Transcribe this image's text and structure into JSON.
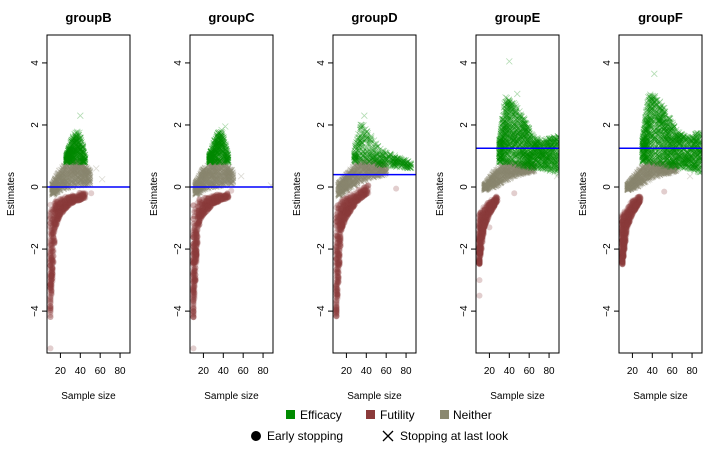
{
  "chart_data": {
    "type": "scatter",
    "xlabel": "Sample size",
    "ylabel": "Estimates",
    "xlim": [
      6.5,
      90
    ],
    "ylim": [
      -5.35,
      4.9
    ],
    "x_ticks": [
      "20",
      "40",
      "60",
      "80"
    ],
    "y_ticks": [
      "-4",
      "-2",
      "0",
      "2",
      "4"
    ],
    "legend": {
      "placement": "bottom",
      "categories": [
        {
          "label": "Efficacy",
          "color": "#008B00"
        },
        {
          "label": "Futility",
          "color": "#8B3A3A"
        },
        {
          "label": "Neither",
          "color": "#8B8970"
        }
      ],
      "markers": [
        {
          "label": "Early stopping",
          "symbol": "circle"
        },
        {
          "label": "Stopping at last look",
          "symbol": "cross"
        }
      ]
    },
    "panels": [
      {
        "title": "groupB",
        "reference_line": 0,
        "clouds": [
          {
            "category": "Futility",
            "marker": "circle",
            "profile": [
              [
                10,
                -4.2,
                -0.45
              ],
              [
                15,
                -1.3,
                -0.4
              ],
              [
                20,
                -0.9,
                -0.35
              ],
              [
                30,
                -0.55,
                -0.25
              ],
              [
                45,
                -0.35,
                -0.15
              ]
            ],
            "outliers": [
              [
                10,
                -5.2
              ],
              [
                45,
                -0.35
              ],
              [
                51,
                -0.2
              ]
            ]
          },
          {
            "category": "Neither",
            "marker": "cross",
            "profile": [
              [
                12,
                -0.25,
                0.1
              ],
              [
                20,
                -0.1,
                0.6
              ],
              [
                30,
                0,
                0.85
              ],
              [
                40,
                0.05,
                0.85
              ],
              [
                50,
                0.1,
                0.5
              ]
            ],
            "outliers": [
              [
                56,
                0.6
              ],
              [
                62,
                0.25
              ]
            ]
          },
          {
            "category": "Efficacy",
            "marker": "cross",
            "profile": [
              [
                26,
                0.8,
                1.0
              ],
              [
                32,
                0.8,
                1.6
              ],
              [
                38,
                0.8,
                1.9
              ],
              [
                45,
                0.8,
                1.0
              ]
            ],
            "outliers": [
              [
                40,
                2.3
              ]
            ]
          }
        ]
      },
      {
        "title": "groupC",
        "reference_line": 0,
        "clouds": [
          {
            "category": "Futility",
            "marker": "circle",
            "profile": [
              [
                10,
                -4.2,
                -0.45
              ],
              [
                15,
                -1.3,
                -0.4
              ],
              [
                20,
                -0.9,
                -0.35
              ],
              [
                30,
                -0.55,
                -0.25
              ],
              [
                45,
                -0.35,
                -0.15
              ]
            ],
            "outliers": [
              [
                10,
                -5.2
              ],
              [
                48,
                -0.12
              ]
            ]
          },
          {
            "category": "Neither",
            "marker": "cross",
            "profile": [
              [
                12,
                -0.25,
                0.1
              ],
              [
                20,
                -0.1,
                0.6
              ],
              [
                30,
                0,
                0.85
              ],
              [
                40,
                0.05,
                0.85
              ],
              [
                50,
                0.1,
                0.5
              ]
            ],
            "outliers": [
              [
                58,
                0.35
              ],
              [
                88,
                0.05
              ]
            ]
          },
          {
            "category": "Efficacy",
            "marker": "cross",
            "profile": [
              [
                26,
                0.8,
                1.0
              ],
              [
                32,
                0.8,
                1.6
              ],
              [
                38,
                0.8,
                1.9
              ],
              [
                45,
                0.8,
                1.0
              ]
            ],
            "outliers": [
              [
                42,
                1.95
              ]
            ]
          }
        ]
      },
      {
        "title": "groupD",
        "reference_line": 0.4,
        "clouds": [
          {
            "category": "Futility",
            "marker": "circle",
            "profile": [
              [
                10,
                -4.2,
                -0.5
              ],
              [
                15,
                -1.4,
                -0.4
              ],
              [
                20,
                -1.0,
                -0.3
              ],
              [
                30,
                -0.5,
                -0.1
              ],
              [
                42,
                -0.2,
                0.1
              ]
            ],
            "outliers": [
              [
                70,
                -0.05
              ]
            ]
          },
          {
            "category": "Neither",
            "marker": "cross",
            "profile": [
              [
                12,
                -0.3,
                0.1
              ],
              [
                20,
                -0.1,
                0.4
              ],
              [
                30,
                0.1,
                0.8
              ],
              [
                45,
                0.3,
                0.85
              ],
              [
                60,
                0.4,
                0.7
              ]
            ],
            "outliers": []
          },
          {
            "category": "Efficacy",
            "marker": "cross",
            "profile": [
              [
                28,
                0.8,
                1.2
              ],
              [
                35,
                0.8,
                2.1
              ],
              [
                42,
                0.8,
                1.8
              ],
              [
                55,
                0.7,
                1.2
              ],
              [
                85,
                0.6,
                0.8
              ]
            ],
            "outliers": [
              [
                38,
                2.3
              ]
            ]
          }
        ]
      },
      {
        "title": "groupE",
        "reference_line": 1.25,
        "clouds": [
          {
            "category": "Futility",
            "marker": "circle",
            "profile": [
              [
                10,
                -2.5,
                -0.8
              ],
              [
                15,
                -1.3,
                -0.6
              ],
              [
                20,
                -0.9,
                -0.4
              ],
              [
                28,
                -0.45,
                -0.25
              ]
            ],
            "outliers": [
              [
                10,
                -3.0
              ],
              [
                10,
                -3.5
              ],
              [
                45,
                -0.2
              ],
              [
                20,
                -1.3
              ]
            ]
          },
          {
            "category": "Neither",
            "marker": "cross",
            "profile": [
              [
                15,
                -0.1,
                0.05
              ],
              [
                25,
                0,
                0.5
              ],
              [
                35,
                0.2,
                0.8
              ],
              [
                50,
                0.4,
                0.75
              ],
              [
                65,
                0.5,
                0.75
              ]
            ],
            "outliers": [
              [
                88,
                0.35
              ]
            ]
          },
          {
            "category": "Efficacy",
            "marker": "cross",
            "profile": [
              [
                30,
                0.8,
                1.5
              ],
              [
                36,
                0.8,
                2.9
              ],
              [
                45,
                0.75,
                2.7
              ],
              [
                55,
                0.65,
                2.2
              ],
              [
                65,
                0.6,
                1.6
              ],
              [
                75,
                0.6,
                1.5
              ],
              [
                90,
                0.4,
                1.7
              ]
            ],
            "outliers": [
              [
                40,
                4.05
              ],
              [
                48,
                3.0
              ]
            ]
          }
        ]
      },
      {
        "title": "groupF",
        "reference_line": 1.25,
        "clouds": [
          {
            "category": "Futility",
            "marker": "circle",
            "profile": [
              [
                10,
                -2.5,
                -0.8
              ],
              [
                15,
                -1.3,
                -0.6
              ],
              [
                20,
                -0.9,
                -0.4
              ],
              [
                28,
                -0.45,
                -0.25
              ]
            ],
            "outliers": [
              [
                52,
                -0.15
              ]
            ]
          },
          {
            "category": "Neither",
            "marker": "cross",
            "profile": [
              [
                15,
                -0.1,
                0.05
              ],
              [
                25,
                0,
                0.5
              ],
              [
                35,
                0.2,
                0.8
              ],
              [
                50,
                0.4,
                0.75
              ],
              [
                65,
                0.5,
                0.75
              ]
            ],
            "outliers": [
              [
                78,
                0.35
              ]
            ]
          },
          {
            "category": "Efficacy",
            "marker": "cross",
            "profile": [
              [
                30,
                0.8,
                1.5
              ],
              [
                36,
                0.8,
                3.0
              ],
              [
                45,
                0.75,
                2.9
              ],
              [
                55,
                0.65,
                2.4
              ],
              [
                65,
                0.6,
                1.8
              ],
              [
                75,
                0.6,
                1.6
              ],
              [
                90,
                0.45,
                1.8
              ]
            ],
            "outliers": [
              [
                42,
                3.65
              ]
            ]
          }
        ]
      }
    ]
  }
}
